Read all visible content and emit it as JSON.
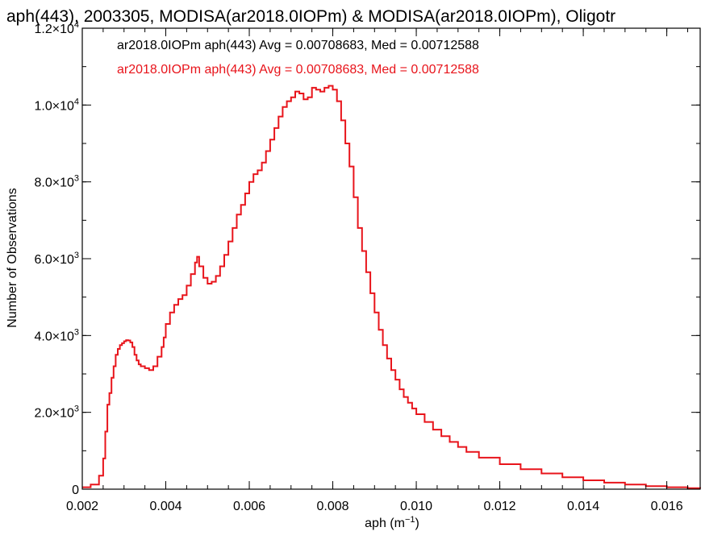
{
  "chart_data": {
    "type": "line",
    "step": true,
    "title": "aph(443), 2003305, MODISA(ar2018.0IOPm) & MODISA(ar2018.0IOPm), Oligotr",
    "xlabel_base": "aph (m",
    "xlabel_exp": "−1",
    "xlabel_close": ")",
    "ylabel": "Number of Observations",
    "xlim": [
      0.002,
      0.0168
    ],
    "ylim": [
      0,
      12000
    ],
    "grid": false,
    "x_ticks": [
      {
        "value": 0.002,
        "label": "0.002"
      },
      {
        "value": 0.004,
        "label": "0.004"
      },
      {
        "value": 0.006,
        "label": "0.006"
      },
      {
        "value": 0.008,
        "label": "0.008"
      },
      {
        "value": 0.01,
        "label": "0.010"
      },
      {
        "value": 0.012,
        "label": "0.012"
      },
      {
        "value": 0.014,
        "label": "0.014"
      },
      {
        "value": 0.016,
        "label": "0.016"
      }
    ],
    "x_minor_step": 0.0005,
    "y_ticks": [
      {
        "value": 0,
        "mantissa": "0",
        "exp": ""
      },
      {
        "value": 2000,
        "mantissa": "2.0×10",
        "exp": "3"
      },
      {
        "value": 4000,
        "mantissa": "4.0×10",
        "exp": "3"
      },
      {
        "value": 6000,
        "mantissa": "6.0×10",
        "exp": "3"
      },
      {
        "value": 8000,
        "mantissa": "8.0×10",
        "exp": "3"
      },
      {
        "value": 10000,
        "mantissa": "1.0×10",
        "exp": "4"
      },
      {
        "value": 12000,
        "mantissa": "1.2×10",
        "exp": "4"
      }
    ],
    "y_minor_step": 1000,
    "legend_position": "top-left",
    "series": [
      {
        "label": "ar2018.0IOPm aph(443) Avg = 0.00708683, Med = 0.00712588",
        "color": "#000000",
        "x": [],
        "y": []
      },
      {
        "label": "ar2018.0IOPm aph(443) Avg = 0.00708683, Med = 0.00712588",
        "color": "#e8141b",
        "x": [
          0.002,
          0.0022,
          0.0024,
          0.0025,
          0.00255,
          0.0026,
          0.00265,
          0.0027,
          0.00275,
          0.0028,
          0.00285,
          0.0029,
          0.00295,
          0.003,
          0.00305,
          0.0031,
          0.00315,
          0.0032,
          0.00325,
          0.0033,
          0.00335,
          0.0034,
          0.0035,
          0.0036,
          0.0037,
          0.0038,
          0.0039,
          0.00395,
          0.004,
          0.0041,
          0.0042,
          0.0043,
          0.0044,
          0.0045,
          0.0046,
          0.0047,
          0.00475,
          0.0048,
          0.0049,
          0.005,
          0.0051,
          0.0052,
          0.0053,
          0.0054,
          0.0055,
          0.0056,
          0.0057,
          0.0058,
          0.0059,
          0.006,
          0.0061,
          0.0062,
          0.0063,
          0.0064,
          0.0065,
          0.0066,
          0.0067,
          0.0068,
          0.0069,
          0.007,
          0.0071,
          0.0072,
          0.0073,
          0.0074,
          0.0075,
          0.0076,
          0.0077,
          0.0078,
          0.0079,
          0.008,
          0.0081,
          0.0082,
          0.0083,
          0.0084,
          0.0085,
          0.0086,
          0.0087,
          0.0088,
          0.0089,
          0.009,
          0.0091,
          0.0092,
          0.0093,
          0.0094,
          0.0095,
          0.0096,
          0.0097,
          0.0098,
          0.0099,
          0.01,
          0.0102,
          0.0104,
          0.0106,
          0.0108,
          0.011,
          0.0112,
          0.0115,
          0.012,
          0.0125,
          0.013,
          0.0135,
          0.014,
          0.0145,
          0.015,
          0.0155,
          0.016,
          0.0165,
          0.0168
        ],
        "y": [
          50,
          120,
          350,
          800,
          1500,
          2200,
          2500,
          2900,
          3200,
          3500,
          3650,
          3750,
          3800,
          3850,
          3880,
          3870,
          3820,
          3700,
          3500,
          3350,
          3250,
          3200,
          3150,
          3100,
          3200,
          3450,
          3700,
          3950,
          4300,
          4600,
          4800,
          4950,
          5050,
          5300,
          5600,
          5900,
          6050,
          5800,
          5500,
          5350,
          5400,
          5550,
          5800,
          6100,
          6450,
          6800,
          7150,
          7400,
          7700,
          8000,
          8200,
          8300,
          8500,
          8800,
          9100,
          9400,
          9700,
          9950,
          10100,
          10200,
          10350,
          10300,
          10150,
          10200,
          10450,
          10400,
          10350,
          10450,
          10500,
          10400,
          10100,
          9600,
          9000,
          8400,
          7600,
          6800,
          6200,
          5650,
          5100,
          4600,
          4150,
          3750,
          3400,
          3100,
          2850,
          2600,
          2400,
          2250,
          2100,
          1950,
          1750,
          1550,
          1380,
          1230,
          1100,
          970,
          820,
          650,
          520,
          410,
          310,
          230,
          170,
          120,
          80,
          50,
          25,
          15
        ]
      }
    ]
  }
}
